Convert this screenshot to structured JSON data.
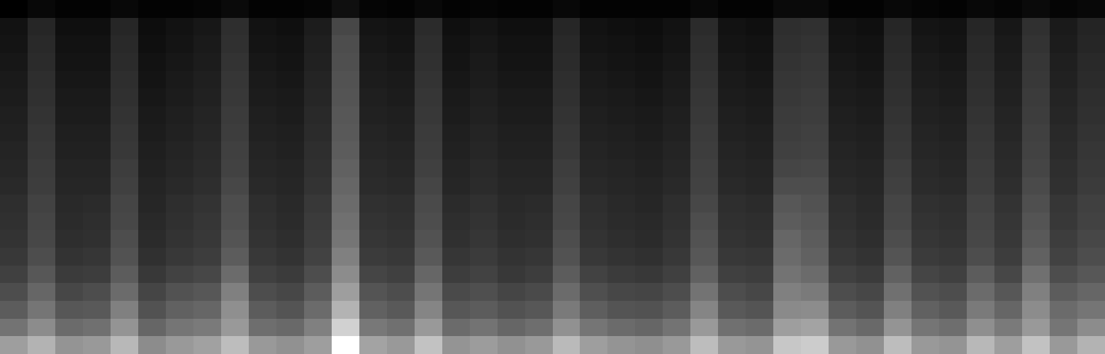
{
  "chart_data": {
    "type": "heatmap",
    "tick_labels": false,
    "cells": [
      [
        0.62,
        0.7,
        0.58,
        0.6,
        0.72,
        0.55,
        0.6,
        0.63,
        0.74,
        0.6,
        0.57,
        0.62,
        1.0,
        0.64,
        0.6,
        0.76,
        0.58,
        0.61,
        0.57,
        0.6,
        0.73,
        0.62,
        0.58,
        0.56,
        0.6,
        0.74,
        0.6,
        0.58,
        0.78,
        0.8,
        0.6,
        0.57,
        0.74,
        0.6,
        0.58,
        0.72,
        0.62,
        0.76,
        0.6,
        0.7
      ],
      [
        0.45,
        0.55,
        0.42,
        0.44,
        0.58,
        0.4,
        0.46,
        0.48,
        0.6,
        0.43,
        0.41,
        0.5,
        0.82,
        0.47,
        0.44,
        0.6,
        0.42,
        0.45,
        0.4,
        0.43,
        0.57,
        0.46,
        0.42,
        0.4,
        0.45,
        0.6,
        0.44,
        0.42,
        0.62,
        0.64,
        0.45,
        0.41,
        0.58,
        0.46,
        0.43,
        0.56,
        0.48,
        0.6,
        0.46,
        0.55
      ],
      [
        0.36,
        0.46,
        0.34,
        0.35,
        0.5,
        0.32,
        0.38,
        0.4,
        0.56,
        0.36,
        0.33,
        0.42,
        0.7,
        0.38,
        0.35,
        0.52,
        0.34,
        0.36,
        0.32,
        0.34,
        0.48,
        0.37,
        0.33,
        0.32,
        0.36,
        0.52,
        0.35,
        0.33,
        0.54,
        0.55,
        0.36,
        0.33,
        0.5,
        0.38,
        0.35,
        0.48,
        0.4,
        0.55,
        0.42,
        0.46
      ],
      [
        0.3,
        0.4,
        0.28,
        0.3,
        0.42,
        0.27,
        0.32,
        0.34,
        0.5,
        0.3,
        0.28,
        0.36,
        0.62,
        0.33,
        0.3,
        0.46,
        0.29,
        0.31,
        0.27,
        0.29,
        0.42,
        0.31,
        0.28,
        0.27,
        0.3,
        0.45,
        0.3,
        0.28,
        0.5,
        0.48,
        0.3,
        0.28,
        0.44,
        0.32,
        0.3,
        0.42,
        0.34,
        0.5,
        0.36,
        0.4
      ],
      [
        0.25,
        0.34,
        0.23,
        0.24,
        0.36,
        0.22,
        0.26,
        0.28,
        0.42,
        0.25,
        0.23,
        0.3,
        0.55,
        0.27,
        0.25,
        0.4,
        0.24,
        0.26,
        0.22,
        0.24,
        0.36,
        0.26,
        0.23,
        0.22,
        0.25,
        0.38,
        0.25,
        0.24,
        0.45,
        0.42,
        0.25,
        0.23,
        0.38,
        0.27,
        0.25,
        0.36,
        0.28,
        0.44,
        0.3,
        0.34
      ],
      [
        0.22,
        0.3,
        0.2,
        0.21,
        0.32,
        0.19,
        0.22,
        0.24,
        0.36,
        0.22,
        0.2,
        0.26,
        0.5,
        0.23,
        0.22,
        0.35,
        0.21,
        0.23,
        0.2,
        0.21,
        0.32,
        0.22,
        0.2,
        0.19,
        0.22,
        0.34,
        0.22,
        0.21,
        0.42,
        0.38,
        0.22,
        0.2,
        0.33,
        0.23,
        0.22,
        0.3,
        0.24,
        0.38,
        0.26,
        0.3
      ],
      [
        0.2,
        0.28,
        0.18,
        0.19,
        0.3,
        0.17,
        0.2,
        0.22,
        0.33,
        0.2,
        0.18,
        0.24,
        0.46,
        0.21,
        0.2,
        0.32,
        0.19,
        0.21,
        0.18,
        0.19,
        0.3,
        0.2,
        0.18,
        0.17,
        0.2,
        0.32,
        0.2,
        0.19,
        0.4,
        0.36,
        0.2,
        0.18,
        0.3,
        0.21,
        0.2,
        0.28,
        0.22,
        0.35,
        0.24,
        0.28
      ],
      [
        0.19,
        0.27,
        0.17,
        0.18,
        0.28,
        0.16,
        0.19,
        0.21,
        0.31,
        0.19,
        0.17,
        0.23,
        0.44,
        0.2,
        0.19,
        0.3,
        0.18,
        0.2,
        0.17,
        0.18,
        0.28,
        0.19,
        0.17,
        0.16,
        0.19,
        0.3,
        0.19,
        0.18,
        0.36,
        0.34,
        0.19,
        0.17,
        0.28,
        0.2,
        0.19,
        0.27,
        0.21,
        0.33,
        0.22,
        0.26
      ],
      [
        0.18,
        0.26,
        0.16,
        0.17,
        0.27,
        0.15,
        0.18,
        0.2,
        0.3,
        0.18,
        0.16,
        0.22,
        0.42,
        0.19,
        0.18,
        0.29,
        0.17,
        0.19,
        0.16,
        0.17,
        0.27,
        0.18,
        0.16,
        0.15,
        0.18,
        0.28,
        0.18,
        0.17,
        0.34,
        0.32,
        0.18,
        0.16,
        0.27,
        0.19,
        0.18,
        0.26,
        0.2,
        0.31,
        0.21,
        0.25
      ],
      [
        0.16,
        0.24,
        0.15,
        0.15,
        0.25,
        0.14,
        0.16,
        0.18,
        0.28,
        0.16,
        0.15,
        0.2,
        0.4,
        0.17,
        0.16,
        0.27,
        0.15,
        0.17,
        0.15,
        0.15,
        0.25,
        0.16,
        0.15,
        0.14,
        0.16,
        0.26,
        0.16,
        0.15,
        0.3,
        0.3,
        0.16,
        0.15,
        0.25,
        0.17,
        0.16,
        0.24,
        0.18,
        0.29,
        0.19,
        0.23
      ],
      [
        0.15,
        0.23,
        0.14,
        0.14,
        0.24,
        0.13,
        0.15,
        0.17,
        0.26,
        0.15,
        0.14,
        0.19,
        0.38,
        0.16,
        0.15,
        0.25,
        0.14,
        0.16,
        0.14,
        0.14,
        0.24,
        0.15,
        0.14,
        0.13,
        0.15,
        0.25,
        0.15,
        0.14,
        0.27,
        0.28,
        0.15,
        0.14,
        0.24,
        0.16,
        0.15,
        0.23,
        0.17,
        0.27,
        0.18,
        0.22
      ],
      [
        0.14,
        0.22,
        0.13,
        0.13,
        0.22,
        0.12,
        0.14,
        0.16,
        0.25,
        0.14,
        0.13,
        0.18,
        0.36,
        0.15,
        0.14,
        0.24,
        0.13,
        0.15,
        0.13,
        0.13,
        0.22,
        0.14,
        0.13,
        0.12,
        0.14,
        0.24,
        0.14,
        0.13,
        0.25,
        0.26,
        0.14,
        0.13,
        0.22,
        0.15,
        0.14,
        0.22,
        0.16,
        0.26,
        0.17,
        0.21
      ],
      [
        0.13,
        0.21,
        0.12,
        0.12,
        0.21,
        0.11,
        0.13,
        0.15,
        0.24,
        0.13,
        0.12,
        0.17,
        0.35,
        0.14,
        0.13,
        0.23,
        0.12,
        0.14,
        0.12,
        0.12,
        0.21,
        0.13,
        0.12,
        0.11,
        0.13,
        0.23,
        0.13,
        0.12,
        0.24,
        0.25,
        0.13,
        0.12,
        0.21,
        0.14,
        0.13,
        0.21,
        0.15,
        0.25,
        0.16,
        0.2
      ],
      [
        0.12,
        0.2,
        0.11,
        0.11,
        0.2,
        0.1,
        0.12,
        0.14,
        0.23,
        0.12,
        0.11,
        0.16,
        0.34,
        0.13,
        0.12,
        0.22,
        0.11,
        0.13,
        0.11,
        0.11,
        0.2,
        0.12,
        0.11,
        0.1,
        0.12,
        0.22,
        0.12,
        0.11,
        0.23,
        0.24,
        0.12,
        0.11,
        0.2,
        0.13,
        0.12,
        0.2,
        0.14,
        0.24,
        0.15,
        0.19
      ],
      [
        0.11,
        0.19,
        0.1,
        0.1,
        0.19,
        0.09,
        0.11,
        0.13,
        0.22,
        0.11,
        0.1,
        0.15,
        0.33,
        0.12,
        0.11,
        0.21,
        0.1,
        0.12,
        0.1,
        0.1,
        0.19,
        0.11,
        0.1,
        0.09,
        0.11,
        0.21,
        0.11,
        0.1,
        0.22,
        0.23,
        0.11,
        0.1,
        0.19,
        0.12,
        0.11,
        0.19,
        0.13,
        0.23,
        0.14,
        0.18
      ],
      [
        0.1,
        0.18,
        0.09,
        0.09,
        0.18,
        0.08,
        0.1,
        0.12,
        0.21,
        0.1,
        0.09,
        0.14,
        0.32,
        0.11,
        0.1,
        0.2,
        0.09,
        0.11,
        0.09,
        0.09,
        0.18,
        0.1,
        0.09,
        0.08,
        0.1,
        0.2,
        0.1,
        0.09,
        0.21,
        0.22,
        0.1,
        0.09,
        0.18,
        0.11,
        0.1,
        0.18,
        0.12,
        0.22,
        0.13,
        0.17
      ],
      [
        0.09,
        0.17,
        0.08,
        0.08,
        0.17,
        0.07,
        0.09,
        0.11,
        0.2,
        0.09,
        0.08,
        0.13,
        0.31,
        0.1,
        0.09,
        0.19,
        0.08,
        0.1,
        0.08,
        0.08,
        0.17,
        0.09,
        0.08,
        0.07,
        0.09,
        0.19,
        0.09,
        0.08,
        0.2,
        0.21,
        0.09,
        0.08,
        0.17,
        0.1,
        0.09,
        0.17,
        0.11,
        0.21,
        0.12,
        0.16
      ],
      [
        0.08,
        0.16,
        0.07,
        0.07,
        0.16,
        0.06,
        0.08,
        0.1,
        0.19,
        0.08,
        0.07,
        0.12,
        0.3,
        0.09,
        0.08,
        0.18,
        0.07,
        0.09,
        0.07,
        0.07,
        0.16,
        0.08,
        0.07,
        0.06,
        0.08,
        0.18,
        0.08,
        0.07,
        0.19,
        0.2,
        0.08,
        0.07,
        0.16,
        0.09,
        0.08,
        0.16,
        0.1,
        0.2,
        0.11,
        0.15
      ],
      [
        0.07,
        0.15,
        0.06,
        0.06,
        0.15,
        0.05,
        0.07,
        0.09,
        0.18,
        0.07,
        0.06,
        0.11,
        0.28,
        0.08,
        0.07,
        0.17,
        0.06,
        0.08,
        0.06,
        0.06,
        0.15,
        0.07,
        0.06,
        0.05,
        0.07,
        0.17,
        0.07,
        0.06,
        0.18,
        0.19,
        0.07,
        0.06,
        0.15,
        0.08,
        0.07,
        0.15,
        0.09,
        0.19,
        0.1,
        0.14
      ],
      [
        0.0,
        0.03,
        0.01,
        0.01,
        0.03,
        0.01,
        0.01,
        0.02,
        0.04,
        0.01,
        0.01,
        0.02,
        0.06,
        0.02,
        0.01,
        0.03,
        0.01,
        0.02,
        0.01,
        0.01,
        0.03,
        0.01,
        0.01,
        0.01,
        0.01,
        0.03,
        0.01,
        0.01,
        0.04,
        0.04,
        0.01,
        0.01,
        0.03,
        0.02,
        0.01,
        0.03,
        0.02,
        0.04,
        0.02,
        0.03
      ]
    ]
  }
}
